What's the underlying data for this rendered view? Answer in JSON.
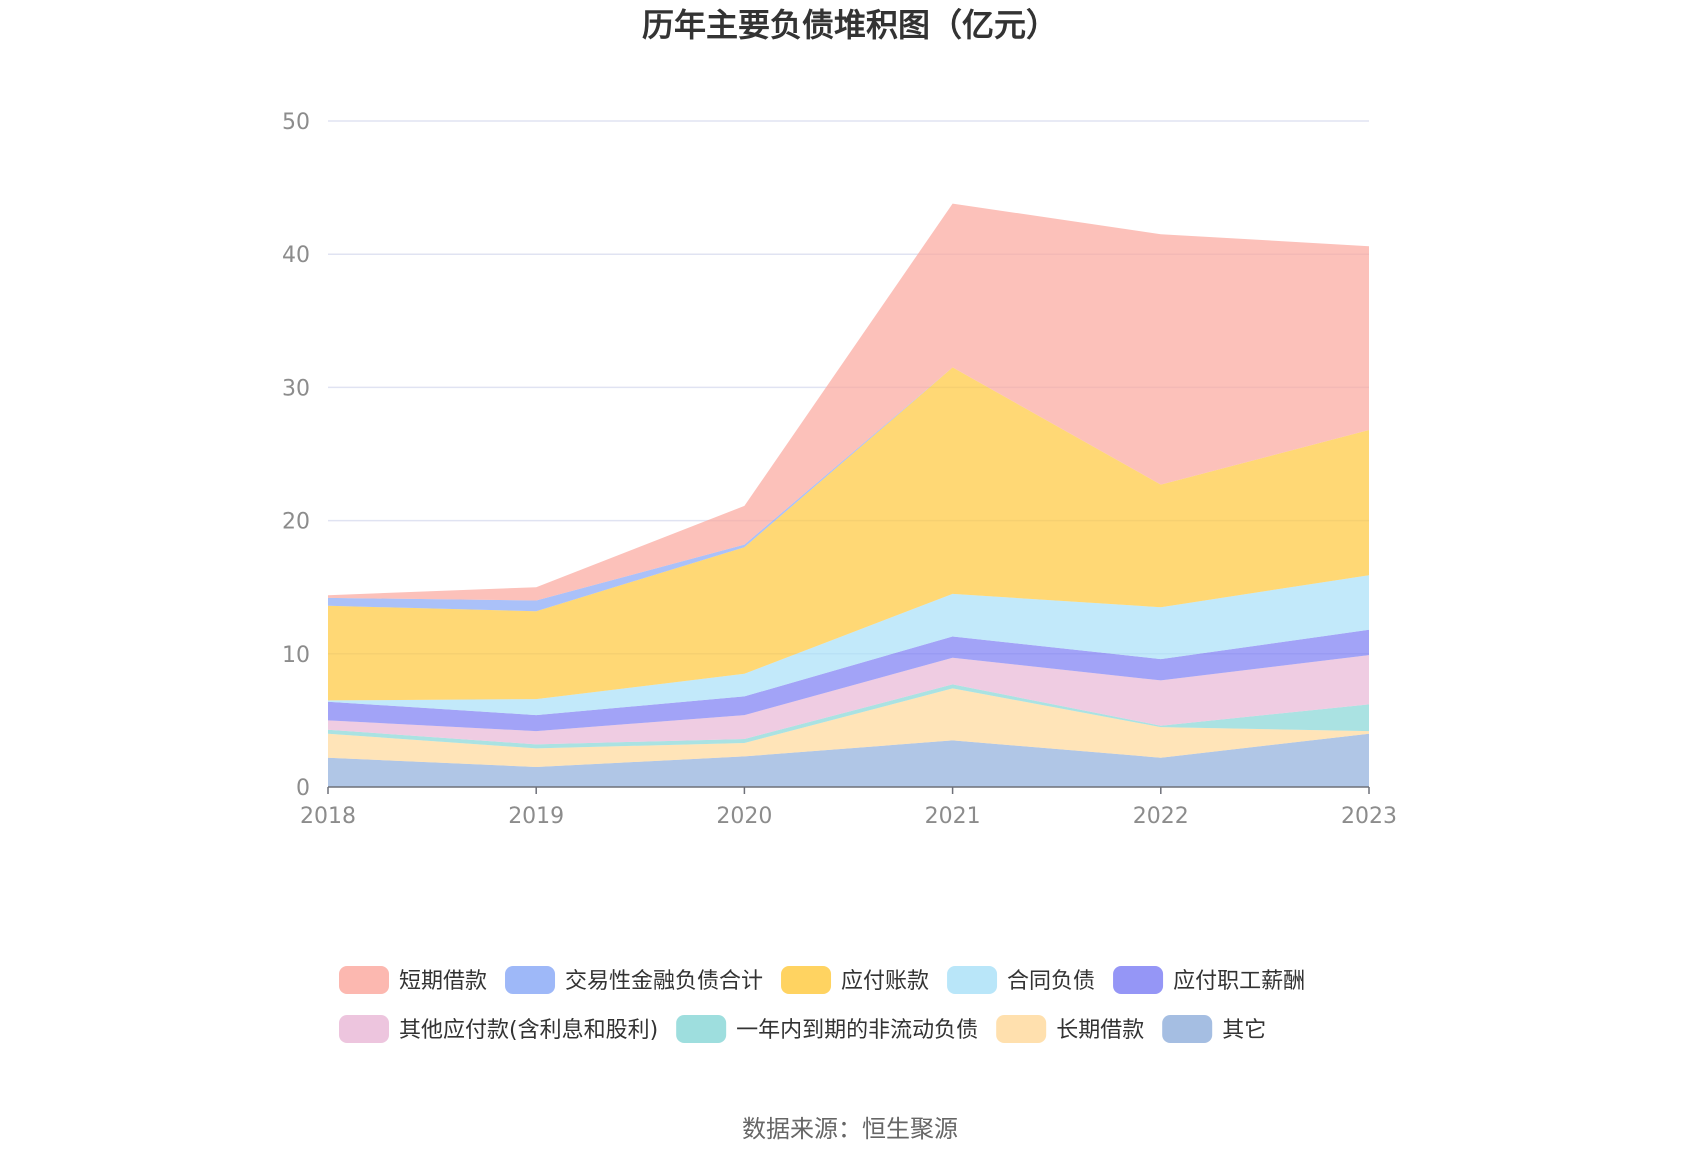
{
  "chart_data": {
    "type": "area",
    "stacked": true,
    "title": "历年主要负债堆积图（亿元）",
    "source": "数据来源：恒生聚源",
    "xlabel": "",
    "ylabel": "",
    "x": [
      "2018",
      "2019",
      "2020",
      "2021",
      "2022",
      "2023"
    ],
    "ylim": [
      0,
      50
    ],
    "yticks": [
      "0",
      "10",
      "20",
      "30",
      "40",
      "50"
    ],
    "grid": true,
    "legend_position": "bottom",
    "series": [
      {
        "name": "其它",
        "color": "#8eaedb",
        "values": [
          2.2,
          1.5,
          2.3,
          3.5,
          2.2,
          4.0
        ]
      },
      {
        "name": "长期借款",
        "color": "#ffd89a",
        "values": [
          1.8,
          1.4,
          1.0,
          3.9,
          2.3,
          0.2
        ]
      },
      {
        "name": "一年内到期的非流动负债",
        "color": "#86d6d6",
        "values": [
          0.3,
          0.3,
          0.3,
          0.3,
          0.1,
          2.0
        ]
      },
      {
        "name": "其他应付款(含利息和股利)",
        "color": "#e8b6d6",
        "values": [
          0.7,
          1.0,
          1.8,
          2.0,
          3.4,
          3.7
        ]
      },
      {
        "name": "应付职工薪酬",
        "color": "#7b7cf4",
        "values": [
          1.4,
          1.2,
          1.4,
          1.6,
          1.6,
          1.9
        ]
      },
      {
        "name": "合同负债",
        "color": "#a8e0f8",
        "values": [
          0.1,
          1.2,
          1.7,
          3.2,
          3.9,
          4.1
        ]
      },
      {
        "name": "应付账款",
        "color": "#ffc83a",
        "values": [
          7.1,
          6.6,
          9.5,
          17.0,
          9.2,
          10.9
        ]
      },
      {
        "name": "交易性金融负债合计",
        "color": "#86a6f6",
        "values": [
          0.6,
          0.8,
          0.2,
          0.0,
          0.0,
          0.0
        ]
      },
      {
        "name": "短期借款",
        "color": "#fba69c",
        "values": [
          0.2,
          1.0,
          2.9,
          12.3,
          18.8,
          13.8
        ]
      }
    ]
  },
  "legend_order": [
    "短期借款",
    "交易性金融负债合计",
    "应付账款",
    "合同负债",
    "应付职工薪酬",
    "其他应付款(含利息和股利)",
    "一年内到期的非流动负债",
    "长期借款",
    "其它"
  ]
}
